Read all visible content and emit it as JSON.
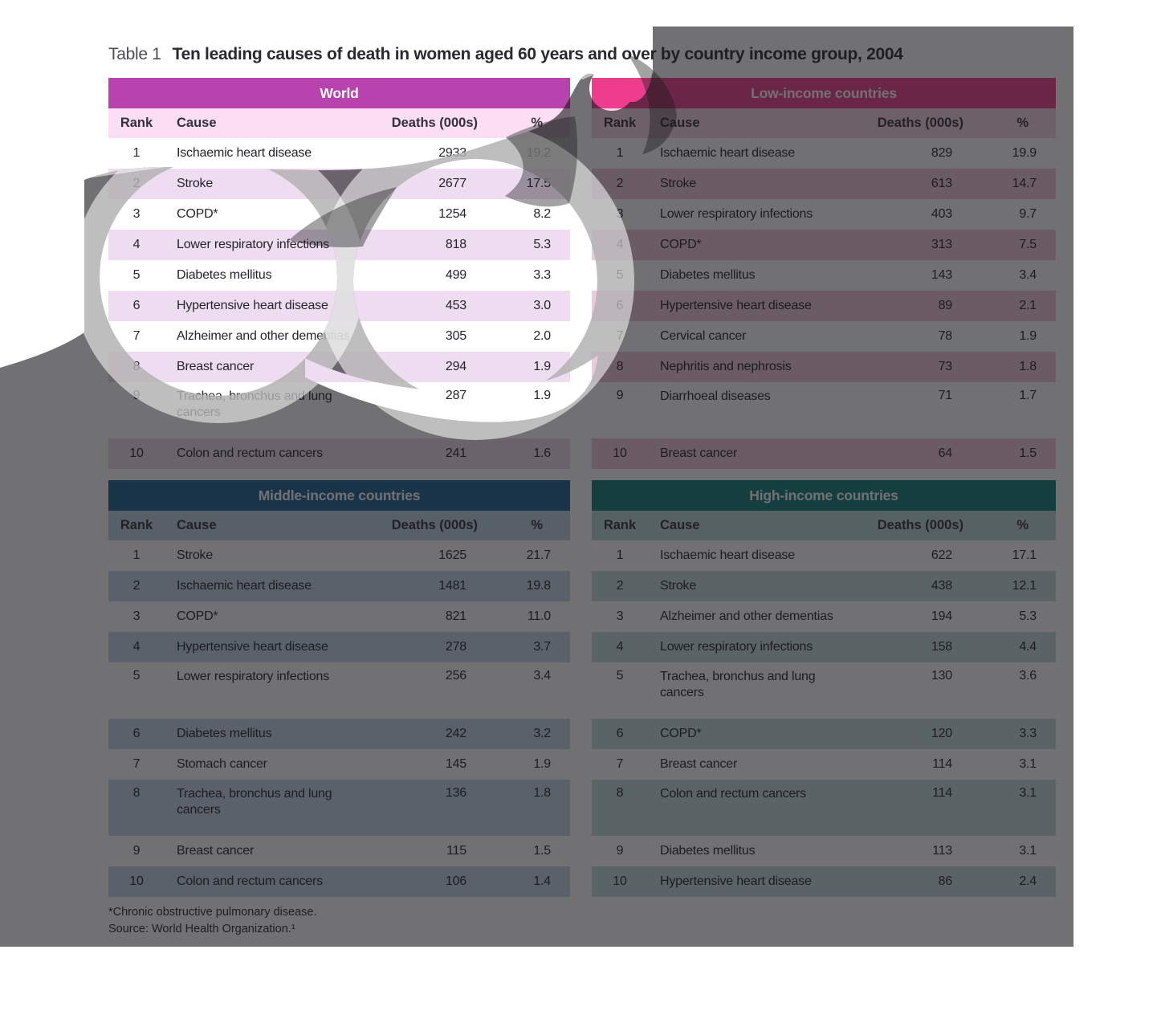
{
  "title": {
    "prefix": "Table 1",
    "text": "Ten leading causes of death in women aged 60 years and over by country income group, 2004"
  },
  "columns": {
    "rank": "Rank",
    "cause": "Cause",
    "deaths": "Deaths (000s)",
    "pct": "%"
  },
  "footnotes": [
    "*Chronic obstructive pulmonary disease.",
    "Source: World Health Organization.¹"
  ],
  "overlay_colors": {
    "veil": "rgba(26,24,28,0.62)",
    "cloud": "rgba(255,255,255,0.55)",
    "accent": "rgba(26,24,28,0.40)"
  },
  "tables": [
    {
      "id": "world",
      "title": "World",
      "colors": {
        "header": "#b843ae",
        "column_header_bg": "#fbdef4",
        "shaded_row_bg": "#eeddf0"
      },
      "rows": [
        {
          "rank": 1,
          "cause": "Ischaemic heart disease",
          "deaths": "2933",
          "pct": "19.2"
        },
        {
          "rank": 2,
          "cause": "Stroke",
          "deaths": "2677",
          "pct": "17.5"
        },
        {
          "rank": 3,
          "cause": "COPD*",
          "deaths": "1254",
          "pct": "8.2"
        },
        {
          "rank": 4,
          "cause": "Lower respiratory infections",
          "deaths": "818",
          "pct": "5.3"
        },
        {
          "rank": 5,
          "cause": "Diabetes mellitus",
          "deaths": "499",
          "pct": "3.3"
        },
        {
          "rank": 6,
          "cause": "Hypertensive heart disease",
          "deaths": "453",
          "pct": "3.0"
        },
        {
          "rank": 7,
          "cause": "Alzheimer and other dementias",
          "deaths": "305",
          "pct": "2.0"
        },
        {
          "rank": 8,
          "cause": "Breast cancer",
          "deaths": "294",
          "pct": "1.9"
        },
        {
          "rank": 9,
          "cause": "Trachea, bronchus and lung cancers",
          "deaths": "287",
          "pct": "1.9",
          "tall": true
        },
        {
          "rank": 10,
          "cause": "Colon and rectum cancers",
          "deaths": "241",
          "pct": "1.6"
        }
      ]
    },
    {
      "id": "low",
      "title": "Low-income countries",
      "colors": {
        "header": "#ee3d8e",
        "column_header_bg": "#f6d6e4",
        "shaded_row_bg": "#ecc9da"
      },
      "rows": [
        {
          "rank": 1,
          "cause": "Ischaemic heart disease",
          "deaths": "829",
          "pct": "19.9"
        },
        {
          "rank": 2,
          "cause": "Stroke",
          "deaths": "613",
          "pct": "14.7"
        },
        {
          "rank": 3,
          "cause": "Lower respiratory infections",
          "deaths": "403",
          "pct": "9.7"
        },
        {
          "rank": 4,
          "cause": "COPD*",
          "deaths": "313",
          "pct": "7.5"
        },
        {
          "rank": 5,
          "cause": "Diabetes mellitus",
          "deaths": "143",
          "pct": "3.4"
        },
        {
          "rank": 6,
          "cause": "Hypertensive heart disease",
          "deaths": "89",
          "pct": "2.1"
        },
        {
          "rank": 7,
          "cause": "Cervical cancer",
          "deaths": "78",
          "pct": "1.9"
        },
        {
          "rank": 8,
          "cause": "Nephritis and nephrosis",
          "deaths": "73",
          "pct": "1.8"
        },
        {
          "rank": 9,
          "cause": "Diarrhoeal diseases",
          "deaths": "71",
          "pct": "1.7",
          "tall": true
        },
        {
          "rank": 10,
          "cause": "Breast cancer",
          "deaths": "64",
          "pct": "1.5"
        }
      ]
    },
    {
      "id": "middle",
      "title": "Middle-income countries",
      "colors": {
        "header": "#1a6391",
        "column_header_bg": "#bcd3e6",
        "shaded_row_bg": "#c3d8ea"
      },
      "rows": [
        {
          "rank": 1,
          "cause": "Stroke",
          "deaths": "1625",
          "pct": "21.7"
        },
        {
          "rank": 2,
          "cause": "Ischaemic heart disease",
          "deaths": "1481",
          "pct": "19.8"
        },
        {
          "rank": 3,
          "cause": "COPD*",
          "deaths": "821",
          "pct": "11.0"
        },
        {
          "rank": 4,
          "cause": "Hypertensive heart disease",
          "deaths": "278",
          "pct": "3.7"
        },
        {
          "rank": 5,
          "cause": "Lower respiratory infections",
          "deaths": "256",
          "pct": "3.4",
          "tall": true
        },
        {
          "rank": 6,
          "cause": "Diabetes mellitus",
          "deaths": "242",
          "pct": "3.2"
        },
        {
          "rank": 7,
          "cause": "Stomach cancer",
          "deaths": "145",
          "pct": "1.9"
        },
        {
          "rank": 8,
          "cause": "Trachea, bronchus and lung cancers",
          "deaths": "136",
          "pct": "1.8",
          "tall": true
        },
        {
          "rank": 9,
          "cause": "Breast cancer",
          "deaths": "115",
          "pct": "1.5"
        },
        {
          "rank": 10,
          "cause": "Colon and rectum cancers",
          "deaths": "106",
          "pct": "1.4"
        }
      ]
    },
    {
      "id": "high",
      "title": "High-income countries",
      "colors": {
        "header": "#0d7f78",
        "column_header_bg": "#b8d8d8",
        "shaded_row_bg": "#c2dede"
      },
      "rows": [
        {
          "rank": 1,
          "cause": "Ischaemic heart disease",
          "deaths": "622",
          "pct": "17.1"
        },
        {
          "rank": 2,
          "cause": "Stroke",
          "deaths": "438",
          "pct": "12.1"
        },
        {
          "rank": 3,
          "cause": "Alzheimer and other dementias",
          "deaths": "194",
          "pct": "5.3"
        },
        {
          "rank": 4,
          "cause": "Lower respiratory infections",
          "deaths": "158",
          "pct": "4.4"
        },
        {
          "rank": 5,
          "cause": "Trachea, bronchus and lung cancers",
          "deaths": "130",
          "pct": "3.6",
          "tall": true
        },
        {
          "rank": 6,
          "cause": "COPD*",
          "deaths": "120",
          "pct": "3.3"
        },
        {
          "rank": 7,
          "cause": "Breast cancer",
          "deaths": "114",
          "pct": "3.1"
        },
        {
          "rank": 8,
          "cause": "Colon and rectum cancers",
          "deaths": "114",
          "pct": "3.1",
          "tall": true
        },
        {
          "rank": 9,
          "cause": "Diabetes mellitus",
          "deaths": "113",
          "pct": "3.1"
        },
        {
          "rank": 10,
          "cause": "Hypertensive heart disease",
          "deaths": "86",
          "pct": "2.4"
        }
      ]
    }
  ]
}
